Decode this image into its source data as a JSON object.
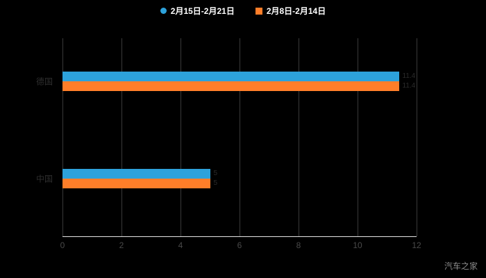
{
  "watermark": "汽车之家",
  "colors": {
    "background": "#000000",
    "series1": "#2DA2DB",
    "series2": "#FF7E29",
    "grid": "#3a3a3a",
    "axis": "#e6e6e6",
    "tick_label": "#4a4a4a",
    "category_label": "#2e2e2e",
    "value_label": "#2b2b2b",
    "legend_text": "#ffffff",
    "watermark": "#8c8c8c"
  },
  "chart_data": {
    "type": "bar",
    "orientation": "horizontal",
    "title": "",
    "xlabel": "",
    "ylabel": "",
    "categories": [
      "德国",
      "中国"
    ],
    "series": [
      {
        "name": "2月15日-2月21日",
        "color": "#2DA2DB",
        "values": [
          11.4,
          5
        ]
      },
      {
        "name": "2月8日-2月14日",
        "color": "#FF7E29",
        "values": [
          11.4,
          5
        ]
      }
    ],
    "xlim": [
      0,
      12
    ],
    "xticks": [
      0,
      2,
      4,
      6,
      8,
      10,
      12
    ],
    "grid": true,
    "legend_position": "top"
  }
}
